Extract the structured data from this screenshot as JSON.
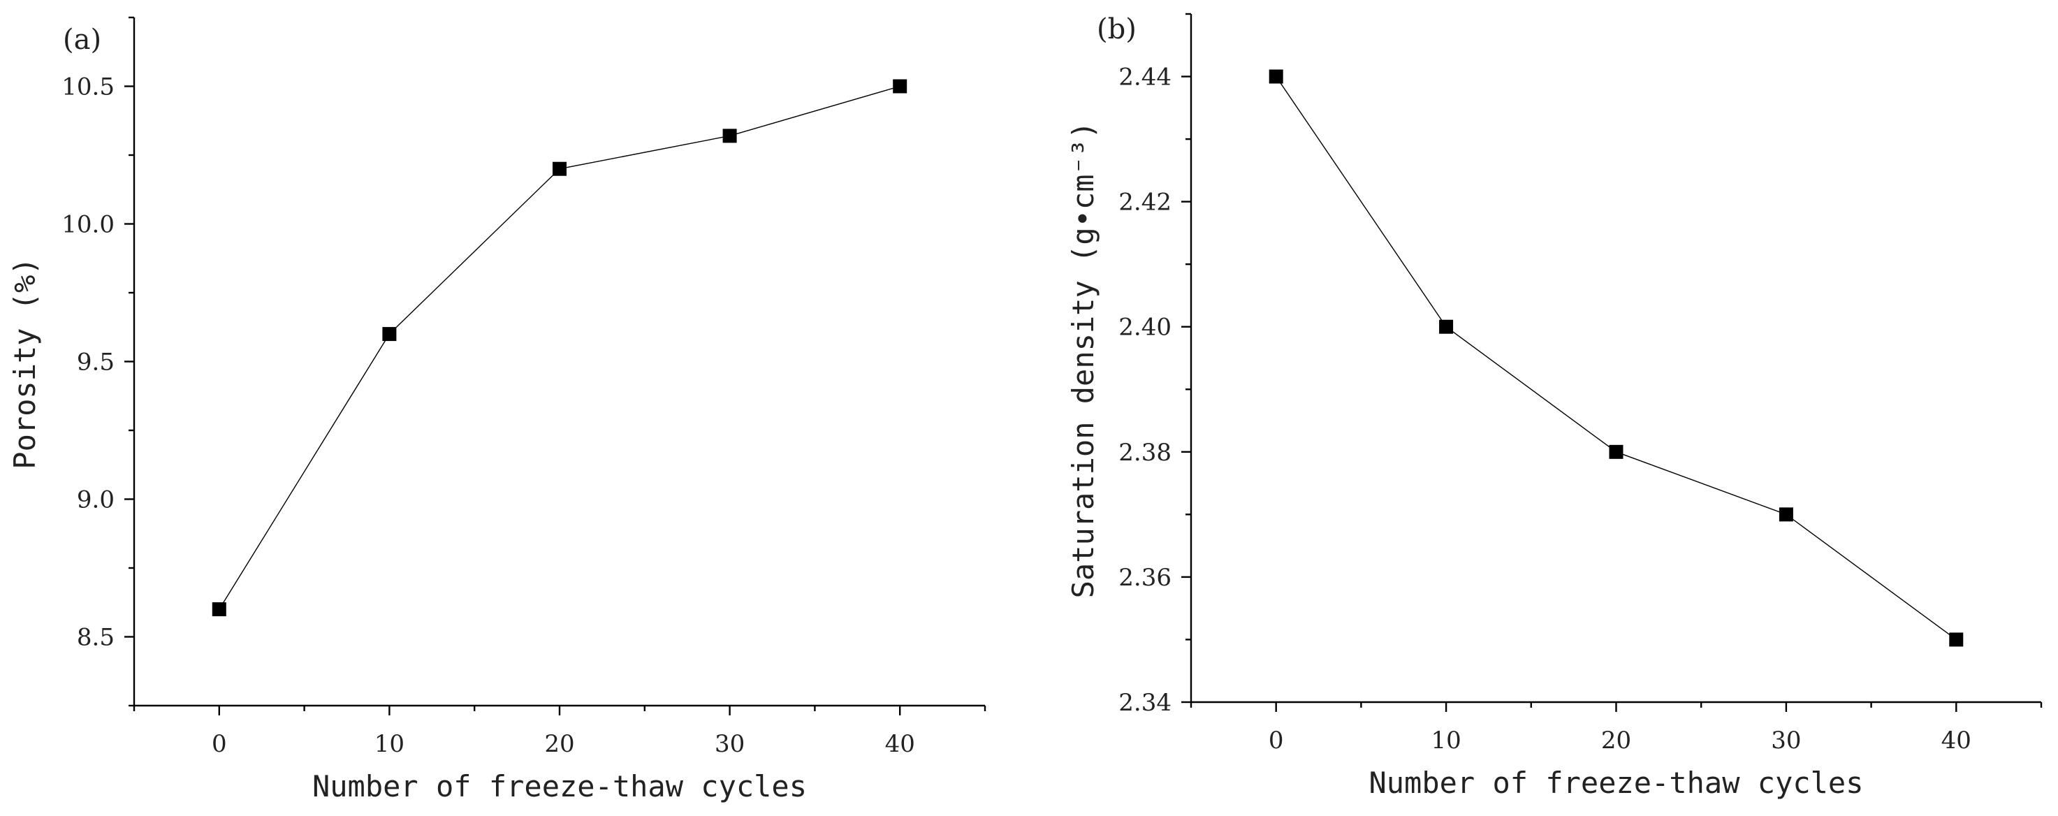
{
  "chart_data": [
    {
      "type": "line",
      "panel_label": "(a)",
      "title": "",
      "xlabel": "Number of freeze-thaw cycles",
      "ylabel": "Porosity (%)",
      "x": [
        0,
        10,
        20,
        30,
        40
      ],
      "xlim": [
        -5,
        45
      ],
      "ylim": [
        8.25,
        10.75
      ],
      "x_ticks": [
        0,
        10,
        20,
        30,
        40
      ],
      "x_tick_labels": [
        "0",
        "10",
        "20",
        "30",
        "40"
      ],
      "y_ticks": [
        8.5,
        9.0,
        9.5,
        10.0,
        10.5
      ],
      "y_tick_labels": [
        "8.5",
        "9.0",
        "9.5",
        "10.0",
        "10.5"
      ],
      "series": [
        {
          "name": "Porosity",
          "marker": "square",
          "values": [
            8.6,
            9.6,
            10.2,
            10.32,
            10.5
          ]
        }
      ]
    },
    {
      "type": "line",
      "panel_label": "(b)",
      "title": "",
      "xlabel": "Number of freeze-thaw cycles",
      "ylabel": "Saturation density (g•cm⁻³)",
      "x": [
        0,
        10,
        20,
        30,
        40
      ],
      "xlim": [
        -5,
        45
      ],
      "ylim": [
        2.34,
        2.45
      ],
      "x_ticks": [
        0,
        10,
        20,
        30,
        40
      ],
      "x_tick_labels": [
        "0",
        "10",
        "20",
        "30",
        "40"
      ],
      "y_ticks": [
        2.34,
        2.36,
        2.38,
        2.4,
        2.42,
        2.44
      ],
      "y_tick_labels": [
        "2.34",
        "2.36",
        "2.38",
        "2.40",
        "2.42",
        "2.44"
      ],
      "series": [
        {
          "name": "Saturation density",
          "marker": "square",
          "values": [
            2.44,
            2.4,
            2.38,
            2.37,
            2.35
          ]
        }
      ]
    }
  ]
}
